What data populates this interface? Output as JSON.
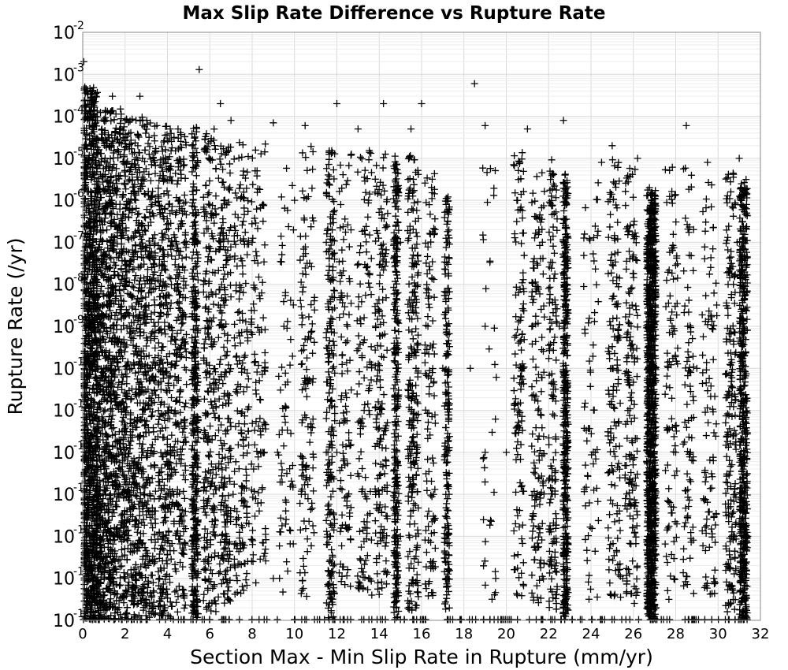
{
  "chart_data": {
    "type": "scatter",
    "title": "Max Slip Rate Difference vs Rupture Rate",
    "xlabel": "Section Max - Min Slip Rate in Rupture (mm/yr)",
    "ylabel": "Rupture Rate (/yr)",
    "x_scale": "linear",
    "y_scale": "log",
    "xlim": [
      0,
      32
    ],
    "ylim": [
      1e-16,
      0.01
    ],
    "xticks": [
      0,
      2,
      4,
      6,
      8,
      10,
      12,
      14,
      16,
      18,
      20,
      22,
      24,
      26,
      28,
      30,
      32
    ],
    "yticks": [
      {
        "base": "10",
        "exp": "-16"
      },
      {
        "base": "10",
        "exp": "-15"
      },
      {
        "base": "10",
        "exp": "-14"
      },
      {
        "base": "10",
        "exp": "-13"
      },
      {
        "base": "10",
        "exp": "-12"
      },
      {
        "base": "10",
        "exp": "-11"
      },
      {
        "base": "10",
        "exp": "-10"
      },
      {
        "base": "10",
        "exp": "-9"
      },
      {
        "base": "10",
        "exp": "-8"
      },
      {
        "base": "10",
        "exp": "-7"
      },
      {
        "base": "10",
        "exp": "-6"
      },
      {
        "base": "10",
        "exp": "-5"
      },
      {
        "base": "10",
        "exp": "-4"
      },
      {
        "base": "10",
        "exp": "-3"
      },
      {
        "base": "10",
        "exp": "-2"
      }
    ],
    "grid": true,
    "marker": "+",
    "marker_color": "#000000",
    "points": [
      [
        0.05,
        0.002
      ],
      [
        5.5,
        0.0013
      ],
      [
        18.5,
        0.0006
      ],
      [
        0.1,
        0.0005
      ],
      [
        1.4,
        0.0003
      ],
      [
        2.7,
        0.0003
      ],
      [
        6.5,
        0.0002
      ],
      [
        12.0,
        0.0002
      ],
      [
        14.2,
        0.0002
      ],
      [
        16.0,
        0.0002
      ],
      [
        22.7,
        8e-05
      ],
      [
        0.2,
        0.0001
      ],
      [
        0.5,
        0.0001
      ],
      [
        1.0,
        8e-05
      ],
      [
        2.0,
        8e-05
      ],
      [
        3.5,
        6e-05
      ],
      [
        4.5,
        5e-05
      ],
      [
        7.0,
        8e-05
      ],
      [
        9.0,
        7e-05
      ],
      [
        10.5,
        6e-05
      ],
      [
        13.0,
        5e-05
      ],
      [
        15.5,
        5e-05
      ],
      [
        19.0,
        6e-05
      ],
      [
        21.0,
        5e-05
      ],
      [
        24.5,
        8e-06
      ],
      [
        26.2,
        1e-05
      ],
      [
        28.5,
        6e-05
      ],
      [
        29.5,
        8e-06
      ],
      [
        31.0,
        1e-05
      ],
      [
        25.0,
        2e-05
      ],
      [
        1.3,
        1e-07
      ],
      [
        2.5,
        1e-06
      ],
      [
        3.8,
        1e-05
      ],
      [
        5.2,
        1e-07
      ],
      [
        6.7,
        1e-06
      ],
      [
        8.0,
        1e-07
      ],
      [
        10.0,
        1e-06
      ],
      [
        11.5,
        1e-07
      ],
      [
        13.5,
        1e-06
      ],
      [
        15.0,
        1e-07
      ],
      [
        17.2,
        1e-07
      ],
      [
        20.5,
        1e-06
      ],
      [
        22.8,
        1e-07
      ],
      [
        26.8,
        1e-07
      ],
      [
        30.9,
        1e-07
      ],
      [
        0.1,
        1e-09
      ],
      [
        1.0,
        1e-10
      ],
      [
        2.2,
        1e-09
      ],
      [
        3.2,
        1e-10
      ],
      [
        4.1,
        1e-09
      ],
      [
        5.3,
        1e-10
      ],
      [
        6.0,
        1e-09
      ],
      [
        7.5,
        1e-10
      ],
      [
        9.5,
        1e-09
      ],
      [
        11.8,
        1e-10
      ],
      [
        12.5,
        1e-09
      ],
      [
        14.8,
        1e-10
      ],
      [
        16.3,
        1e-09
      ],
      [
        17.0,
        1e-10
      ],
      [
        19.0,
        1e-09
      ],
      [
        20.8,
        1e-10
      ],
      [
        22.5,
        1e-09
      ],
      [
        25.0,
        1e-10
      ],
      [
        26.9,
        1e-09
      ],
      [
        29.0,
        1e-10
      ],
      [
        31.2,
        1e-09
      ],
      [
        0.3,
        1e-12
      ],
      [
        1.5,
        1e-13
      ],
      [
        2.8,
        1e-12
      ],
      [
        4.3,
        1e-13
      ],
      [
        5.4,
        1e-12
      ],
      [
        7.1,
        1e-13
      ],
      [
        8.5,
        1e-12
      ],
      [
        10.5,
        1e-13
      ],
      [
        12.0,
        1e-12
      ],
      [
        14.0,
        1e-13
      ],
      [
        15.8,
        1e-12
      ],
      [
        17.3,
        1e-13
      ],
      [
        20.0,
        1e-12
      ],
      [
        22.3,
        1e-13
      ],
      [
        24.2,
        1e-12
      ],
      [
        26.7,
        1e-13
      ],
      [
        28.0,
        1e-12
      ],
      [
        30.8,
        1e-13
      ],
      [
        0.5,
        1e-15
      ],
      [
        2.0,
        1e-15
      ],
      [
        3.8,
        1e-14
      ],
      [
        5.2,
        1e-15
      ],
      [
        6.8,
        1e-14
      ],
      [
        9.0,
        1e-15
      ],
      [
        11.7,
        1e-14
      ],
      [
        13.5,
        1e-15
      ],
      [
        15.0,
        1e-14
      ],
      [
        17.2,
        1e-15
      ],
      [
        19.5,
        1e-15
      ],
      [
        22.7,
        1e-14
      ],
      [
        25.5,
        1e-15
      ],
      [
        26.8,
        1e-14
      ],
      [
        29.8,
        1e-15
      ],
      [
        31.4,
        1e-14
      ],
      [
        18.3,
        1e-10
      ],
      [
        19.0,
        1e-12
      ],
      [
        21.5,
        1e-11
      ],
      [
        8.4,
        1e-12
      ],
      [
        9.2,
        1e-12
      ],
      [
        26.9,
        1e-16
      ],
      [
        22.6,
        1e-16
      ],
      [
        15.0,
        1e-16
      ]
    ],
    "bands": [
      {
        "x_center": 0.35,
        "x_spread": 0.35,
        "y_log_top": -3.3,
        "y_log_bottom": -16,
        "count": 1100
      },
      {
        "x_center": 1.0,
        "x_spread": 0.35,
        "y_log_top": -3.8,
        "y_log_bottom": -16,
        "count": 650
      },
      {
        "x_center": 1.7,
        "x_spread": 0.35,
        "y_log_top": -3.8,
        "y_log_bottom": -16,
        "count": 500
      },
      {
        "x_center": 2.4,
        "x_spread": 0.35,
        "y_log_top": -4.0,
        "y_log_bottom": -16,
        "count": 420
      },
      {
        "x_center": 3.1,
        "x_spread": 0.35,
        "y_log_top": -4.0,
        "y_log_bottom": -16,
        "count": 380
      },
      {
        "x_center": 3.9,
        "x_spread": 0.35,
        "y_log_top": -4.1,
        "y_log_bottom": -16,
        "count": 360
      },
      {
        "x_center": 4.6,
        "x_spread": 0.3,
        "y_log_top": -4.2,
        "y_log_bottom": -15.8,
        "count": 260
      },
      {
        "x_center": 5.3,
        "x_spread": 0.15,
        "y_log_top": -4.2,
        "y_log_bottom": -16,
        "count": 380
      },
      {
        "x_center": 6.0,
        "x_spread": 0.3,
        "y_log_top": -4.3,
        "y_log_bottom": -15.8,
        "count": 250
      },
      {
        "x_center": 6.7,
        "x_spread": 0.3,
        "y_log_top": -4.5,
        "y_log_bottom": -15.6,
        "count": 230
      },
      {
        "x_center": 7.5,
        "x_spread": 0.35,
        "y_log_top": -4.6,
        "y_log_bottom": -15.5,
        "count": 180
      },
      {
        "x_center": 8.3,
        "x_spread": 0.35,
        "y_log_top": -4.6,
        "y_log_bottom": -15.5,
        "count": 120
      },
      {
        "x_center": 9.6,
        "x_spread": 0.35,
        "y_log_top": -4.6,
        "y_log_bottom": -15.5,
        "count": 70
      },
      {
        "x_center": 10.6,
        "x_spread": 0.35,
        "y_log_top": -4.7,
        "y_log_bottom": -15.5,
        "count": 130
      },
      {
        "x_center": 11.7,
        "x_spread": 0.2,
        "y_log_top": -4.8,
        "y_log_bottom": -16,
        "count": 220
      },
      {
        "x_center": 12.4,
        "x_spread": 0.3,
        "y_log_top": -4.8,
        "y_log_bottom": -15.5,
        "count": 110
      },
      {
        "x_center": 13.3,
        "x_spread": 0.35,
        "y_log_top": -4.8,
        "y_log_bottom": -15.5,
        "count": 130
      },
      {
        "x_center": 14.1,
        "x_spread": 0.3,
        "y_log_top": -4.8,
        "y_log_bottom": -15.5,
        "count": 170
      },
      {
        "x_center": 14.8,
        "x_spread": 0.12,
        "y_log_top": -4.9,
        "y_log_bottom": -16,
        "count": 300
      },
      {
        "x_center": 15.6,
        "x_spread": 0.25,
        "y_log_top": -4.9,
        "y_log_bottom": -15.8,
        "count": 240
      },
      {
        "x_center": 16.4,
        "x_spread": 0.25,
        "y_log_top": -5.0,
        "y_log_bottom": -15.5,
        "count": 120
      },
      {
        "x_center": 17.2,
        "x_spread": 0.12,
        "y_log_top": -5.8,
        "y_log_bottom": -15.8,
        "count": 200
      },
      {
        "x_center": 19.2,
        "x_spread": 0.35,
        "y_log_top": -4.8,
        "y_log_bottom": -15.5,
        "count": 35
      },
      {
        "x_center": 20.6,
        "x_spread": 0.25,
        "y_log_top": -4.8,
        "y_log_bottom": -15.5,
        "count": 130
      },
      {
        "x_center": 21.5,
        "x_spread": 0.3,
        "y_log_top": -5.0,
        "y_log_bottom": -15.6,
        "count": 150
      },
      {
        "x_center": 22.2,
        "x_spread": 0.2,
        "y_log_top": -5.0,
        "y_log_bottom": -15.8,
        "count": 150
      },
      {
        "x_center": 22.8,
        "x_spread": 0.12,
        "y_log_top": -5.3,
        "y_log_bottom": -16,
        "count": 420
      },
      {
        "x_center": 24.0,
        "x_spread": 0.35,
        "y_log_top": -5.0,
        "y_log_bottom": -15.5,
        "count": 70
      },
      {
        "x_center": 25.1,
        "x_spread": 0.3,
        "y_log_top": -5.0,
        "y_log_bottom": -15.5,
        "count": 150
      },
      {
        "x_center": 25.9,
        "x_spread": 0.3,
        "y_log_top": -5.0,
        "y_log_bottom": -15.6,
        "count": 170
      },
      {
        "x_center": 26.85,
        "x_spread": 0.22,
        "y_log_top": -5.7,
        "y_log_bottom": -16,
        "count": 1000
      },
      {
        "x_center": 27.8,
        "x_spread": 0.3,
        "y_log_top": -5.0,
        "y_log_bottom": -15.5,
        "count": 100
      },
      {
        "x_center": 28.6,
        "x_spread": 0.25,
        "y_log_top": -4.8,
        "y_log_bottom": -15.5,
        "count": 90
      },
      {
        "x_center": 29.6,
        "x_spread": 0.35,
        "y_log_top": -5.3,
        "y_log_bottom": -15.5,
        "count": 100
      },
      {
        "x_center": 30.6,
        "x_spread": 0.25,
        "y_log_top": -5.3,
        "y_log_bottom": -15.8,
        "count": 200
      },
      {
        "x_center": 31.2,
        "x_spread": 0.18,
        "y_log_top": -5.5,
        "y_log_bottom": -16,
        "count": 550
      }
    ]
  }
}
